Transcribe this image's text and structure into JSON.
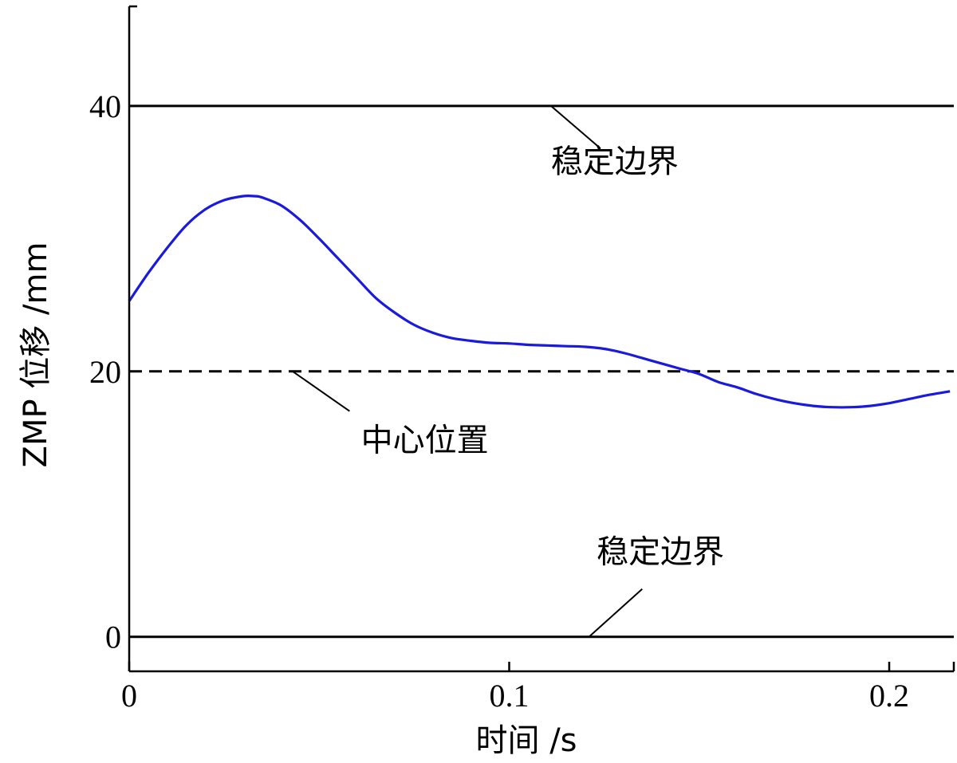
{
  "chart_data": {
    "type": "line",
    "xlabel": "时间 /s",
    "ylabel": "ZMP 位移 /mm",
    "xlim": [
      0,
      0.217
    ],
    "ylim": [
      -2.6,
      47.5
    ],
    "x_ticks": [
      {
        "value": 0,
        "label": "0"
      },
      {
        "value": 0.1,
        "label": "0.1"
      },
      {
        "value": 0.2,
        "label": "0.2"
      }
    ],
    "y_ticks": [
      {
        "value": 0,
        "label": "0"
      },
      {
        "value": 20,
        "label": "20"
      },
      {
        "value": 40,
        "label": "40"
      }
    ],
    "grid": false,
    "reference_lines": [
      {
        "y": 40,
        "style": "solid",
        "color": "#000000"
      },
      {
        "y": 20,
        "style": "dashed",
        "color": "#000000"
      },
      {
        "y": 0,
        "style": "solid",
        "color": "#000000"
      }
    ],
    "annotations": [
      {
        "text": "稳定边界",
        "text_x": 0.111,
        "text_y": 35.0,
        "line_from": [
          0.111,
          40.0
        ],
        "line_to": [
          0.124,
          36.8
        ]
      },
      {
        "text": "中心位置",
        "text_x": 0.061,
        "text_y": 14.0,
        "line_from": [
          0.043,
          20.0
        ],
        "line_to": [
          0.058,
          17.0
        ]
      },
      {
        "text": "稳定边界",
        "text_x": 0.123,
        "text_y": 5.6,
        "line_from": [
          0.121,
          0.0
        ],
        "line_to": [
          0.135,
          3.6
        ]
      }
    ],
    "series": [
      {
        "color": "#1a1adf",
        "x": [
          0,
          0.005,
          0.01,
          0.015,
          0.02,
          0.025,
          0.03,
          0.033,
          0.035,
          0.04,
          0.045,
          0.05,
          0.055,
          0.06,
          0.065,
          0.07,
          0.075,
          0.08,
          0.085,
          0.09,
          0.095,
          0.1,
          0.105,
          0.11,
          0.115,
          0.12,
          0.125,
          0.13,
          0.135,
          0.14,
          0.145,
          0.15,
          0.155,
          0.16,
          0.165,
          0.17,
          0.175,
          0.18,
          0.185,
          0.19,
          0.195,
          0.2,
          0.205,
          0.21,
          0.216
        ],
        "y": [
          25.3,
          27.4,
          29.3,
          31.0,
          32.2,
          32.9,
          33.2,
          33.2,
          33.1,
          32.5,
          31.4,
          30.0,
          28.5,
          27.0,
          25.5,
          24.4,
          23.5,
          22.9,
          22.5,
          22.3,
          22.15,
          22.1,
          22.0,
          21.95,
          21.9,
          21.85,
          21.7,
          21.4,
          21.0,
          20.6,
          20.2,
          19.8,
          19.2,
          18.8,
          18.3,
          17.9,
          17.6,
          17.4,
          17.3,
          17.3,
          17.4,
          17.6,
          17.9,
          18.2,
          18.5
        ]
      }
    ]
  }
}
